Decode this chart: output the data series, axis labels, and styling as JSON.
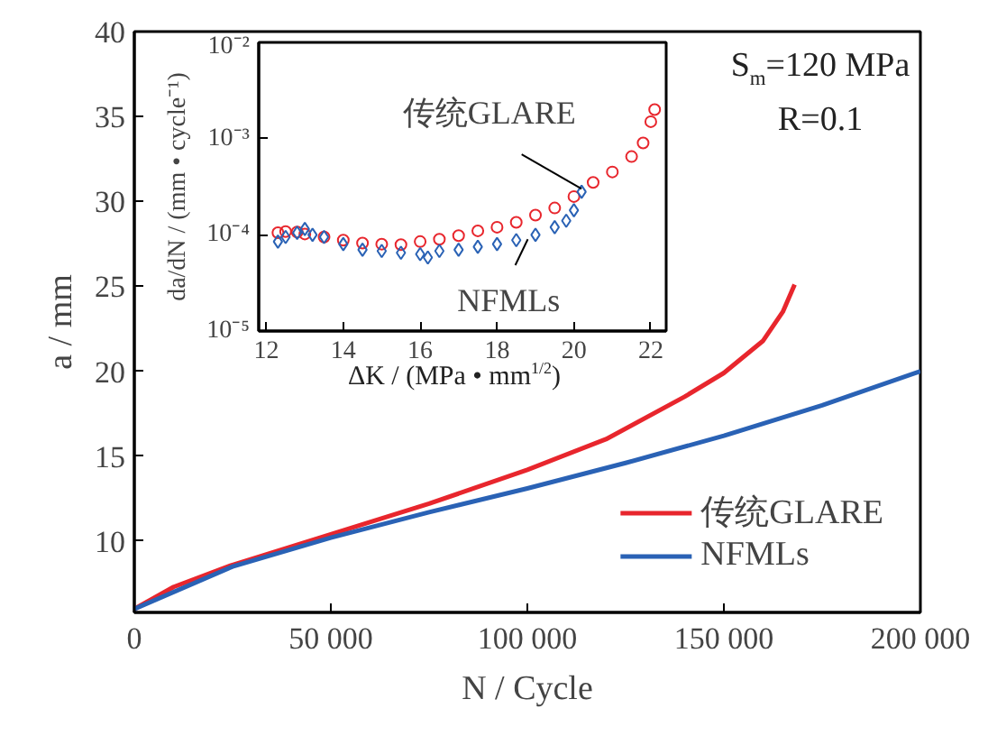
{
  "chart_data": [
    {
      "type": "line",
      "xlabel": "N / Cycle",
      "ylabel": "a / mm",
      "xlim": [
        0,
        200000
      ],
      "ylim": [
        5.8,
        40
      ],
      "xticks": [
        0,
        {
          "value": 50000,
          "label": "50 000"
        },
        {
          "value": 100000,
          "label": "100 000"
        },
        {
          "value": 150000,
          "label": "150 000"
        },
        {
          "value": 200000,
          "label": "200 000"
        }
      ],
      "yticks": [
        10,
        15,
        20,
        25,
        30,
        35,
        40
      ],
      "grid": false,
      "legend": "bottom right",
      "annotations": [
        "S$_{m}$=120 MPa",
        "R=0.1"
      ],
      "series": [
        {
          "name": "传统GLARE",
          "color": "#e8262d",
          "x": [
            0,
            10000,
            25000,
            50000,
            75000,
            100000,
            120000,
            140000,
            150000,
            160000,
            165000,
            168000
          ],
          "values": [
            6,
            7.3,
            8.6,
            10.4,
            12.2,
            14.2,
            16,
            18.5,
            19.9,
            21.8,
            23.5,
            25.1
          ]
        },
        {
          "name": "NFMLs",
          "color": "#2a62b5",
          "x": [
            0,
            25000,
            50000,
            75000,
            100000,
            125000,
            150000,
            175000,
            200000
          ],
          "values": [
            6,
            8.5,
            10.2,
            11.7,
            13.1,
            14.6,
            16.2,
            18,
            20
          ]
        }
      ]
    },
    {
      "type": "scatter",
      "xlabel": "ΔK / (MPa • mm$^{1/2}$)",
      "ylabel": "da/dN / (mm • cycle⁻¹)",
      "xlim": [
        11.8,
        22.4
      ],
      "ylim": [
        1e-05,
        0.01
      ],
      "log": "y",
      "xticks": [
        12,
        14,
        16,
        18,
        20,
        22
      ],
      "yticks": [
        {
          "value": 1e-05,
          "label": "10⁻⁵"
        },
        {
          "value": 0.0001,
          "label": "10⁻⁴"
        },
        {
          "value": 0.001,
          "label": "10⁻³"
        },
        {
          "value": 0.01,
          "label": "10⁻²"
        }
      ],
      "grid": false,
      "annotations": [
        {
          "text": "传统GLARE",
          "x": 20.2,
          "y": 0.0003
        },
        {
          "text": "NFMLs",
          "x": 18.8,
          "y": 9e-05
        }
      ],
      "series": [
        {
          "color": "#e8262d",
          "marker": "circle",
          "x": [
            12.3,
            12.5,
            12.8,
            13,
            13.5,
            14,
            14.5,
            15,
            15.5,
            16,
            16.5,
            17,
            17.5,
            18,
            18.5,
            19,
            19.5,
            20,
            20.5,
            21,
            21.5,
            21.8,
            22,
            22.1
          ],
          "values": [
            0.000105,
            0.000108,
            0.000107,
            0.000102,
            9.5e-05,
            8.8e-05,
            8.2e-05,
            8e-05,
            7.9e-05,
            8.5e-05,
            9e-05,
            9.8e-05,
            0.00011,
            0.00012,
            0.000135,
            0.00016,
            0.00019,
            0.00025,
            0.00035,
            0.00045,
            0.00065,
            0.0009,
            0.0015,
            0.002
          ]
        },
        {
          "color": "#2a62b5",
          "marker": "diamond",
          "x": [
            12.3,
            12.5,
            12.8,
            13,
            13.2,
            13.5,
            14,
            14.5,
            15,
            15.5,
            16,
            16.2,
            16.5,
            17,
            17.5,
            18,
            18.5,
            19,
            19.5,
            19.8,
            20,
            20.2
          ],
          "values": [
            8.5e-05,
            9.5e-05,
            0.000105,
            0.000115,
            0.0001,
            9.5e-05,
            8e-05,
            7e-05,
            6.8e-05,
            6.5e-05,
            6.3e-05,
            5.8e-05,
            6.8e-05,
            7e-05,
            7.5e-05,
            8e-05,
            8.8e-05,
            0.0001,
            0.00012,
            0.00014,
            0.00018,
            0.00028
          ]
        }
      ]
    }
  ]
}
